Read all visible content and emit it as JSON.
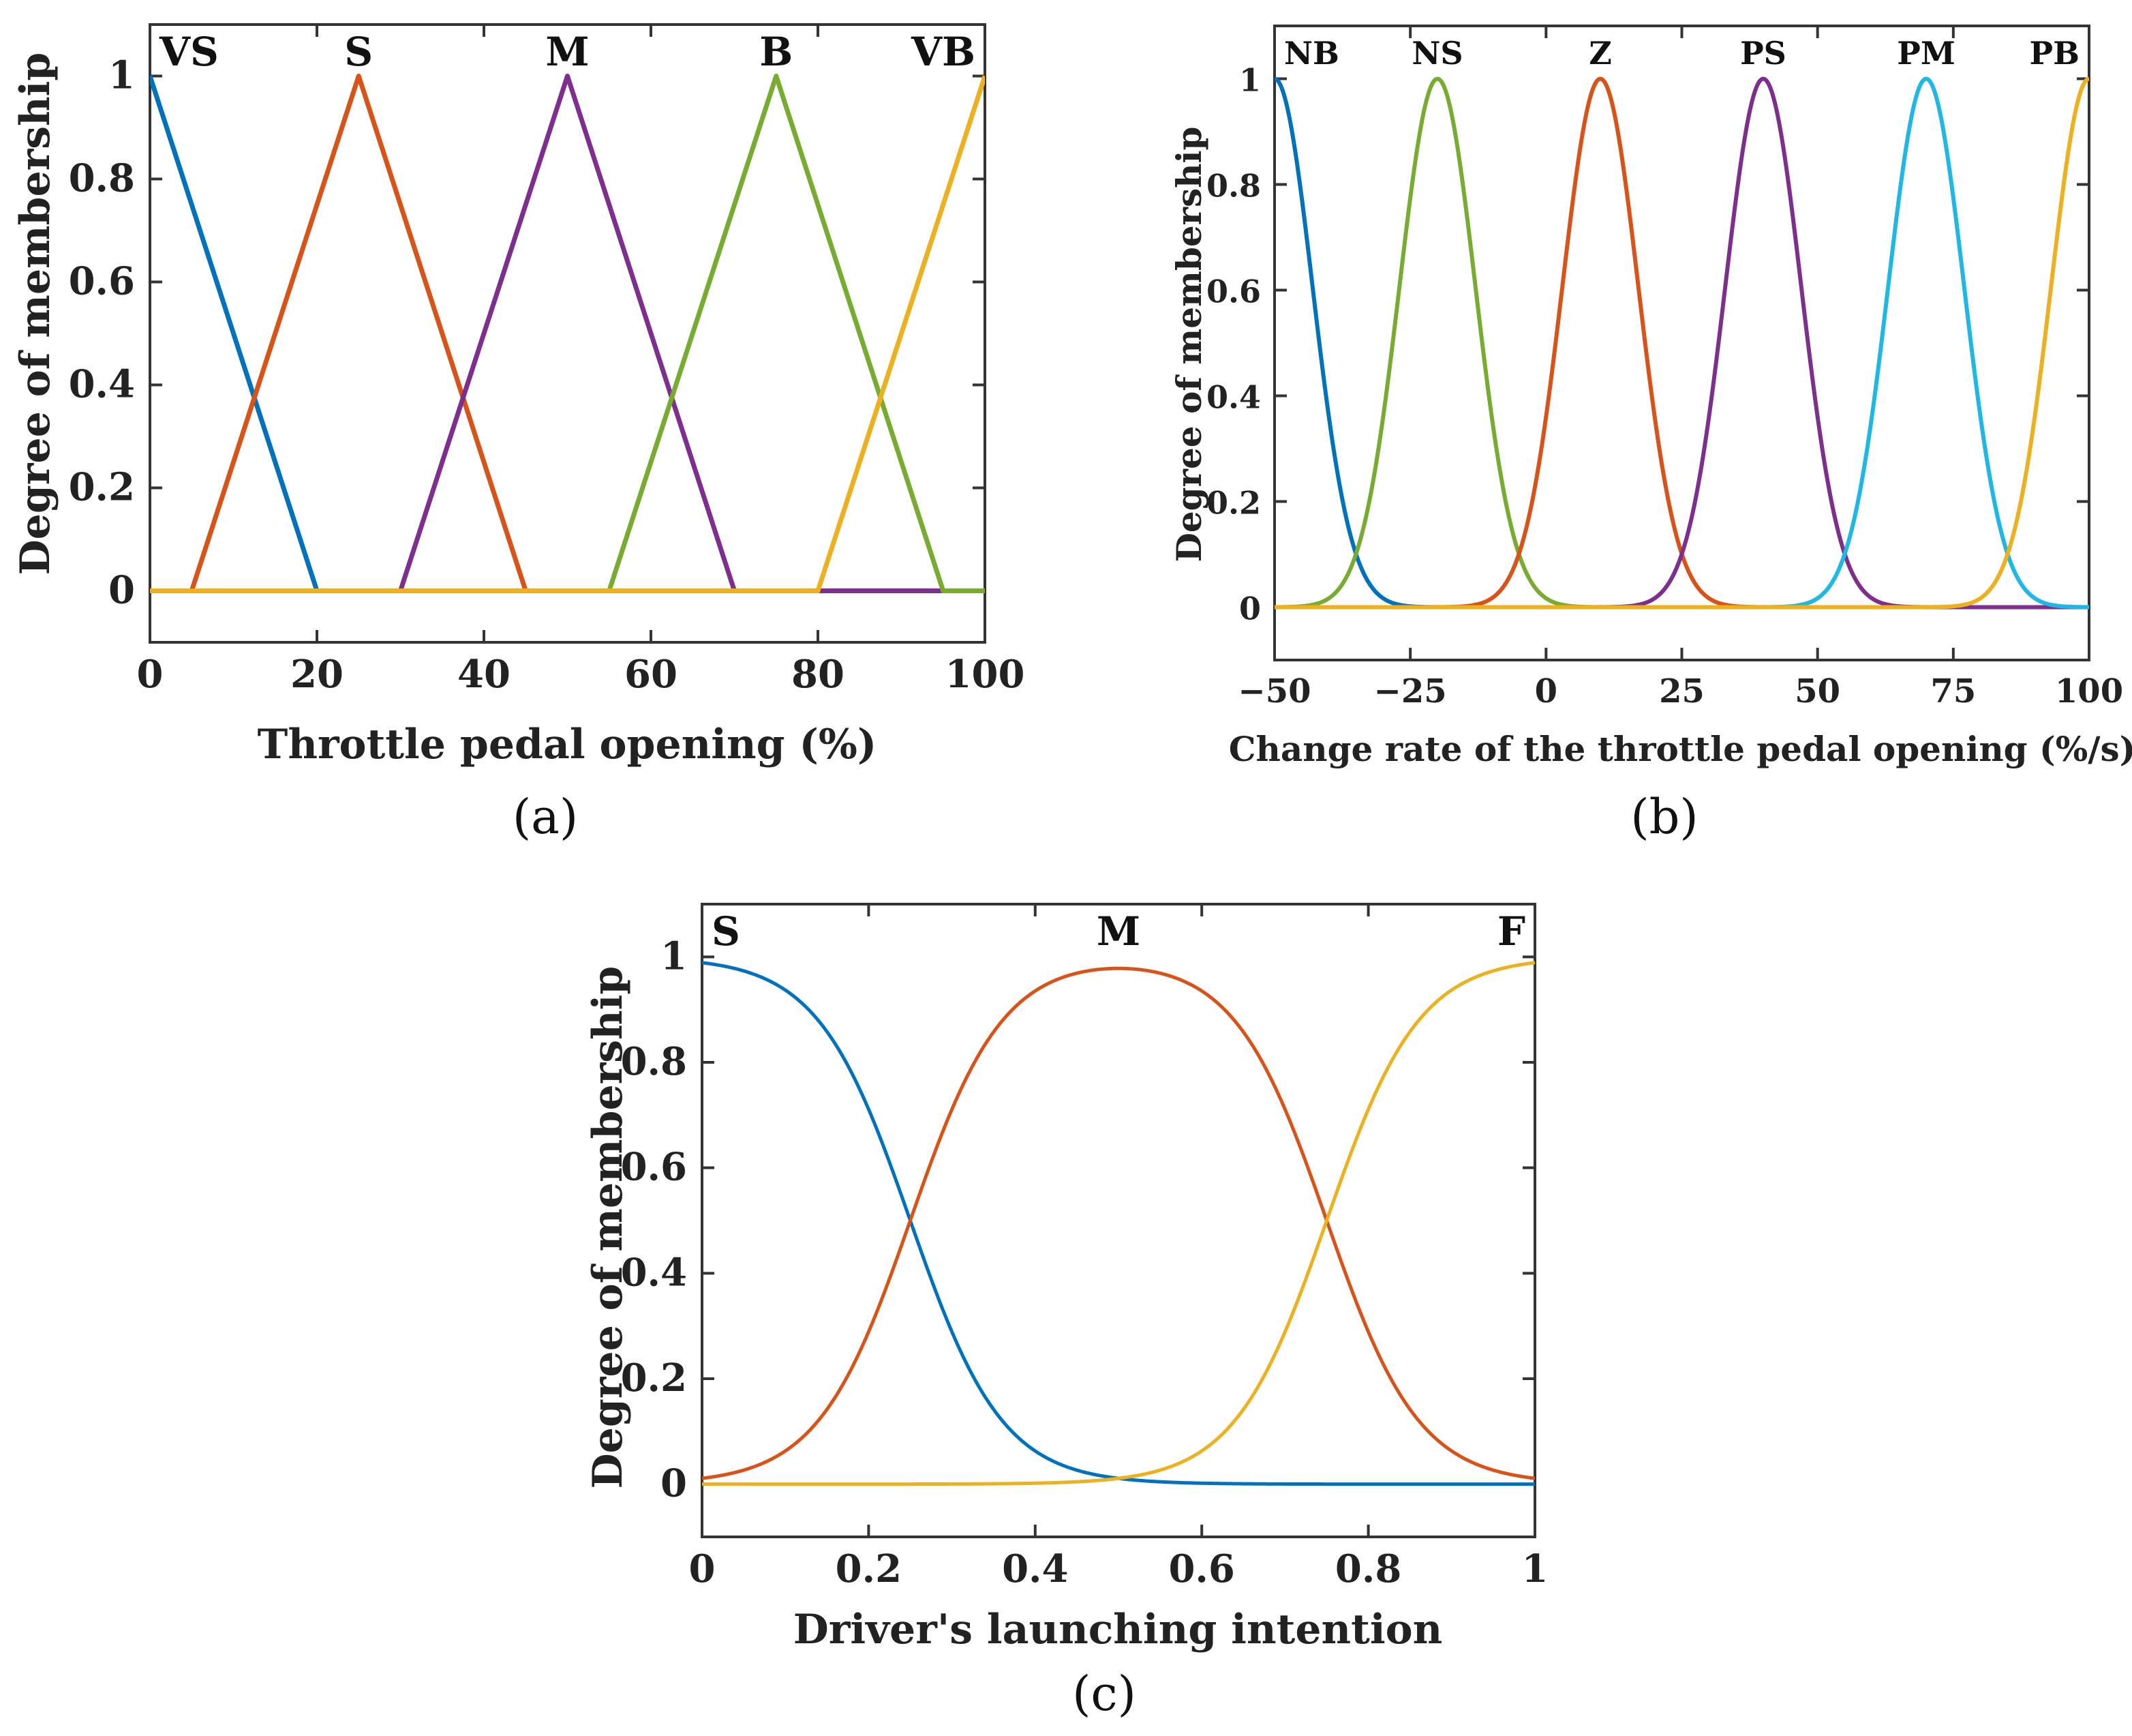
{
  "chart_data": [
    {
      "id": "a",
      "type": "line",
      "caption": "(a)",
      "xlabel": "Throttle pedal opening (%)",
      "ylabel": "Degree of membership",
      "xlim": [
        0,
        100
      ],
      "ylim": [
        -0.1,
        1.1
      ],
      "xticks": [
        0,
        20,
        40,
        60,
        80,
        100
      ],
      "xtick_labels": [
        "0",
        "20",
        "40",
        "60",
        "80",
        "100"
      ],
      "yticks": [
        0,
        0.2,
        0.4,
        0.6,
        0.8,
        1
      ],
      "ytick_labels": [
        "0",
        "0.2",
        "0.4",
        "0.6",
        "0.8",
        "1"
      ],
      "series": [
        {
          "name": "VS",
          "color": "#0072BD",
          "shape": "trimf",
          "params": [
            -20,
            0,
            20
          ]
        },
        {
          "name": "S",
          "color": "#D95319",
          "shape": "trimf",
          "params": [
            5,
            25,
            45
          ]
        },
        {
          "name": "M",
          "color": "#7E2F8E",
          "shape": "trimf",
          "params": [
            30,
            50,
            70
          ]
        },
        {
          "name": "B",
          "color": "#77AC30",
          "shape": "trimf",
          "params": [
            55,
            75,
            95
          ]
        },
        {
          "name": "VB",
          "color": "#EDB120",
          "shape": "trimf",
          "params": [
            80,
            100,
            120
          ]
        }
      ]
    },
    {
      "id": "b",
      "type": "line",
      "caption": "(b)",
      "xlabel": "Change rate of the throttle pedal opening  (%/s)",
      "ylabel": "Degree of membership",
      "xlim": [
        -50,
        100
      ],
      "ylim": [
        -0.1,
        1.1
      ],
      "xticks": [
        -50,
        -25,
        0,
        25,
        50,
        75,
        100
      ],
      "xtick_labels": [
        "−50",
        "−25",
        "0",
        "25",
        "50",
        "75",
        "100"
      ],
      "yticks": [
        0,
        0.2,
        0.4,
        0.6,
        0.8,
        1
      ],
      "ytick_labels": [
        "0",
        "0.2",
        "0.4",
        "0.6",
        "0.8",
        "1"
      ],
      "series": [
        {
          "name": "NB",
          "color": "#0072BD",
          "shape": "gaussmf",
          "params": [
            7,
            -50
          ]
        },
        {
          "name": "NS",
          "color": "#77AC30",
          "shape": "gaussmf",
          "params": [
            7,
            -20
          ]
        },
        {
          "name": "Z",
          "color": "#D95319",
          "shape": "gaussmf",
          "params": [
            7,
            10
          ]
        },
        {
          "name": "PS",
          "color": "#7E2F8E",
          "shape": "gaussmf",
          "params": [
            7,
            40
          ]
        },
        {
          "name": "PM",
          "color": "#1EB7E6",
          "shape": "gaussmf",
          "params": [
            7,
            70
          ]
        },
        {
          "name": "PB",
          "color": "#EDB120",
          "shape": "gaussmf",
          "params": [
            7,
            100
          ]
        }
      ]
    },
    {
      "id": "c",
      "type": "line",
      "caption": "(c)",
      "xlabel": "Driver's launching intention",
      "ylabel": "Degree of membership",
      "xlim": [
        0,
        1
      ],
      "ylim": [
        -0.1,
        1.1
      ],
      "xticks": [
        0,
        0.2,
        0.4,
        0.6,
        0.8,
        1
      ],
      "xtick_labels": [
        "0",
        "0.2",
        "0.4",
        "0.6",
        "0.8",
        "1"
      ],
      "yticks": [
        0,
        0.2,
        0.4,
        0.6,
        0.8,
        1
      ],
      "ytick_labels": [
        "0",
        "0.2",
        "0.4",
        "0.6",
        "0.8",
        "1"
      ],
      "series": [
        {
          "name": "S",
          "color": "#0072BD",
          "shape": "zmf_sig",
          "params": [
            0.25,
            18
          ]
        },
        {
          "name": "M",
          "color": "#D95319",
          "shape": "band_sig",
          "params": [
            0.25,
            0.75,
            18
          ]
        },
        {
          "name": "F",
          "color": "#EDB120",
          "shape": "smf_sig",
          "params": [
            0.75,
            18
          ]
        }
      ]
    }
  ]
}
